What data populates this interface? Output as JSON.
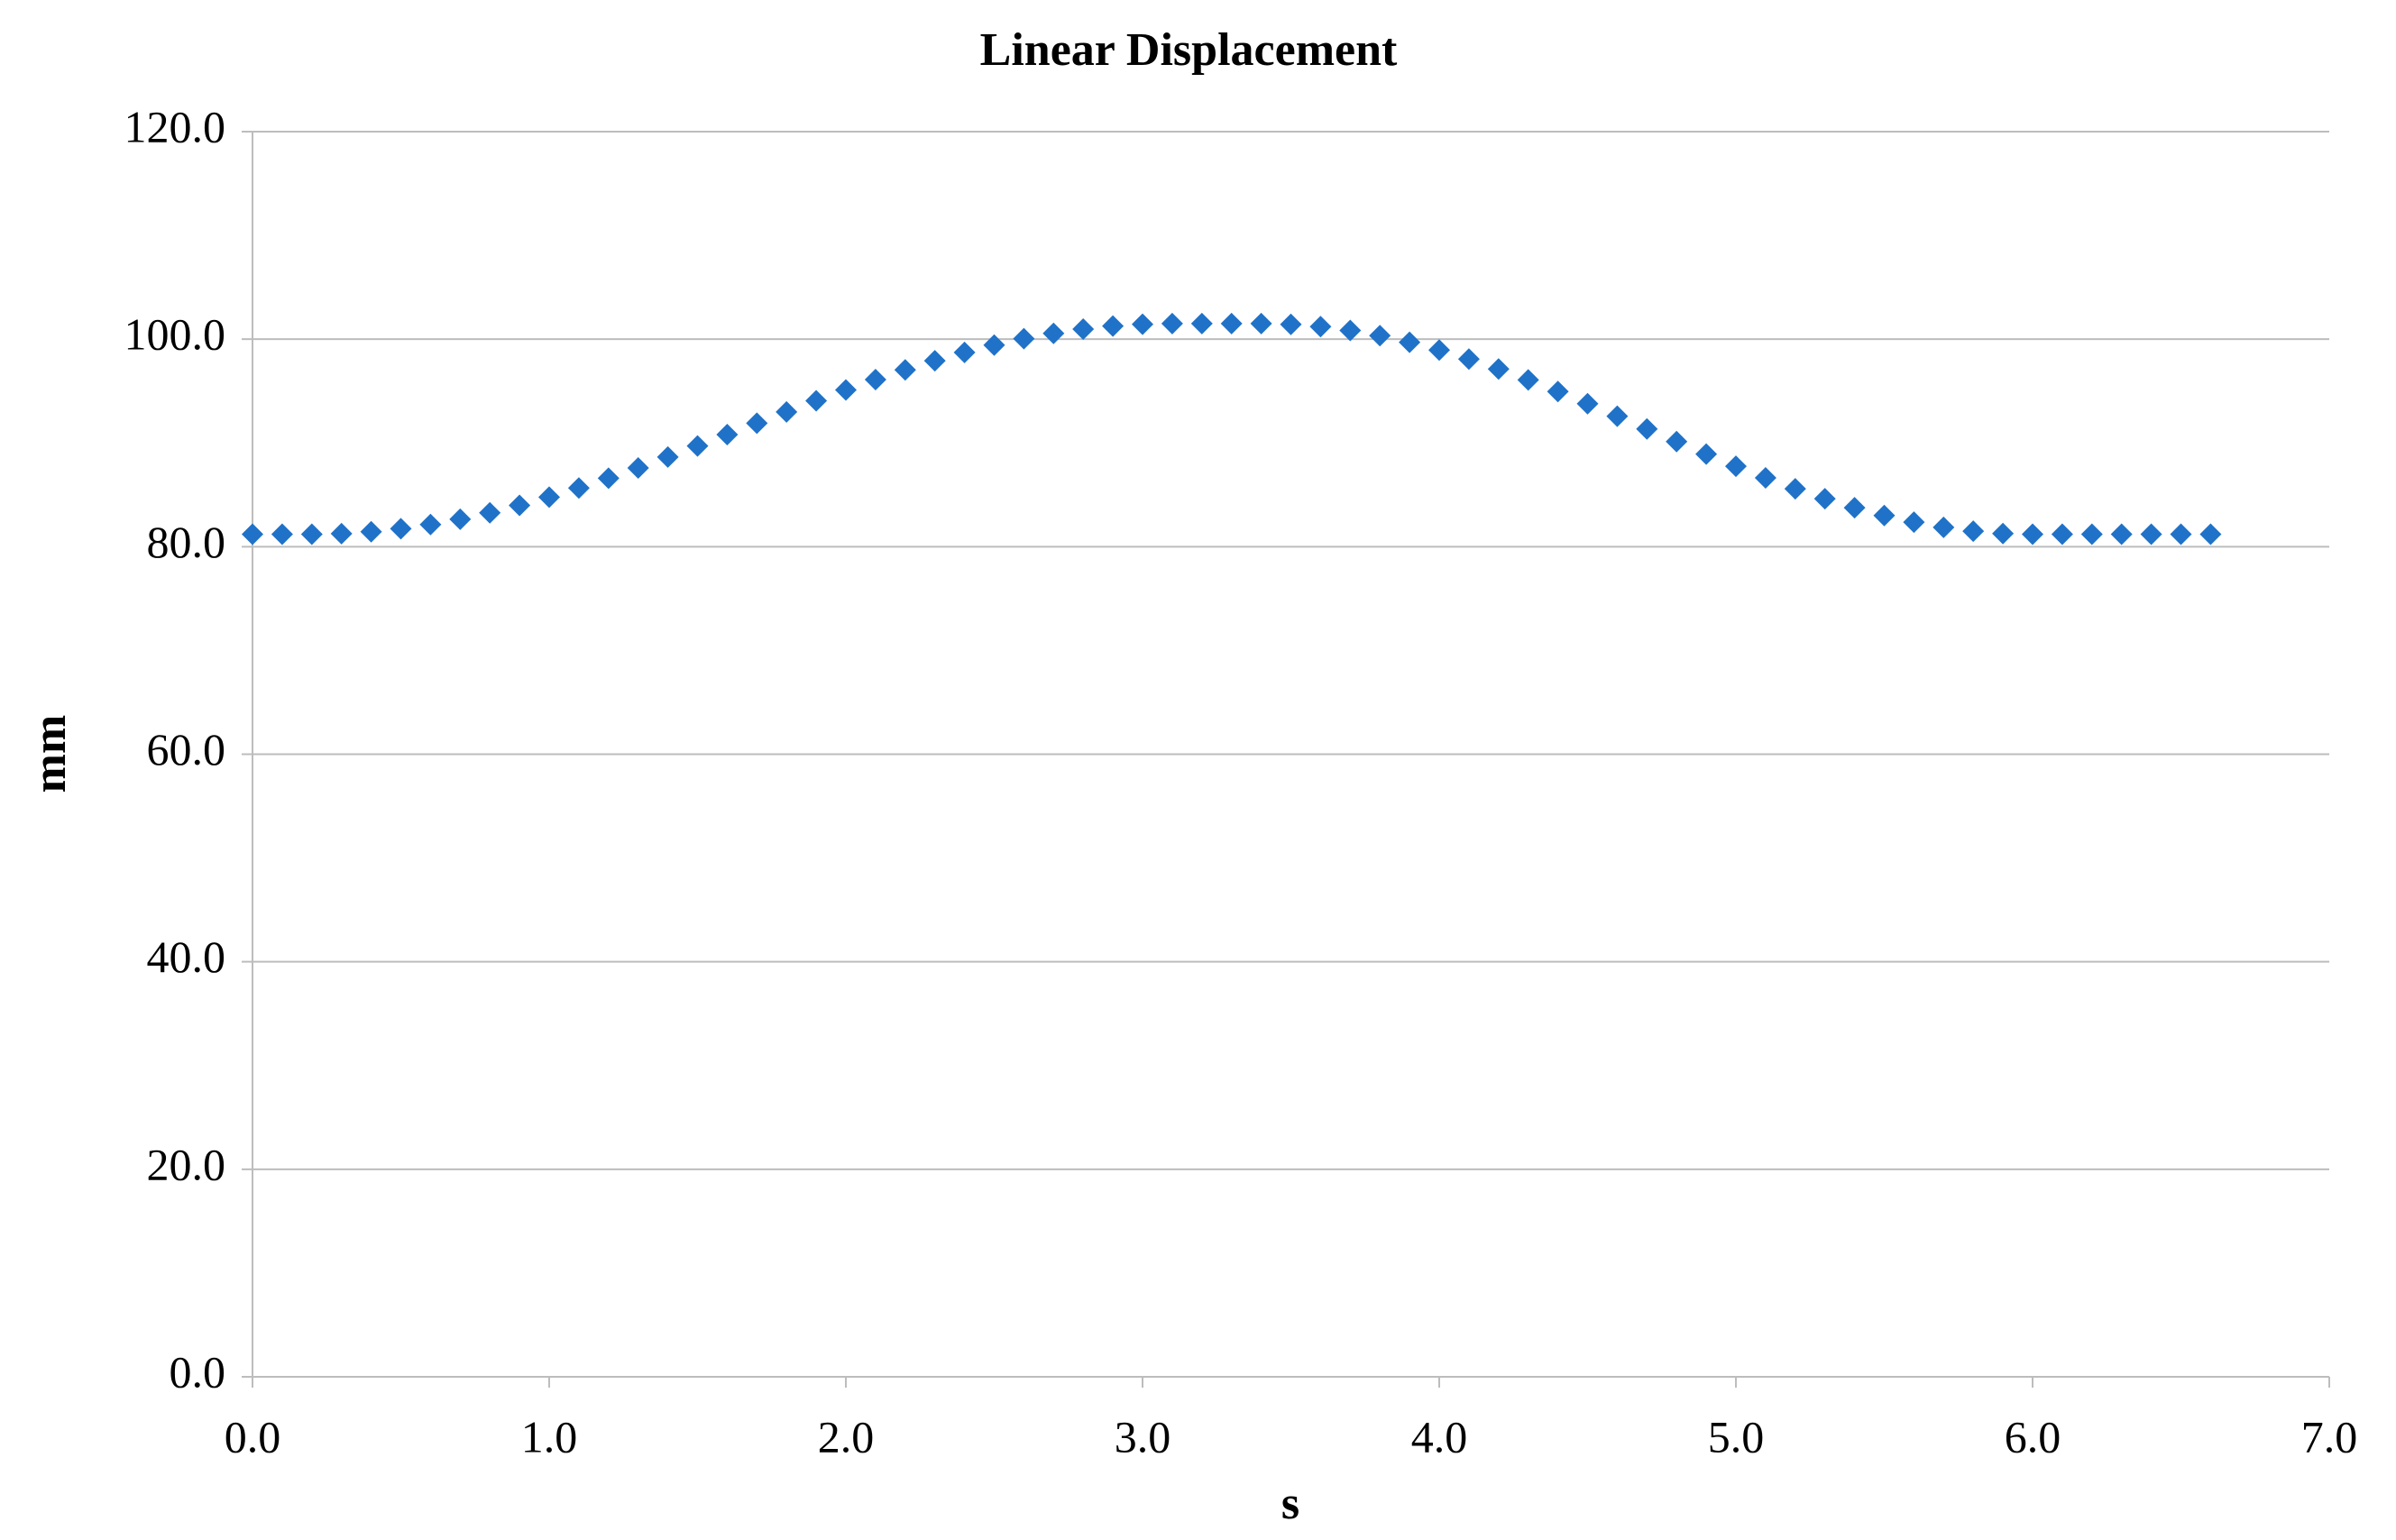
{
  "chart_data": {
    "type": "scatter",
    "title": "Linear Displacement",
    "x_label": "s",
    "y_label": "mm",
    "xlim": [
      0,
      7
    ],
    "ylim": [
      0,
      120
    ],
    "xticks": [
      {
        "value": 0,
        "label": "0.0"
      },
      {
        "value": 1,
        "label": "1.0"
      },
      {
        "value": 2,
        "label": "2.0"
      },
      {
        "value": 3,
        "label": "3.0"
      },
      {
        "value": 4,
        "label": "4.0"
      },
      {
        "value": 5,
        "label": "5.0"
      },
      {
        "value": 6,
        "label": "6.0"
      },
      {
        "value": 7,
        "label": "7.0"
      }
    ],
    "yticks": [
      {
        "value": 0,
        "label": "0.0"
      },
      {
        "value": 20,
        "label": "20.0"
      },
      {
        "value": 40,
        "label": "40.0"
      },
      {
        "value": 60,
        "label": "60.0"
      },
      {
        "value": 80,
        "label": "80.0"
      },
      {
        "value": 100,
        "label": "100.0"
      },
      {
        "value": 120,
        "label": "120.0"
      }
    ],
    "grid": true,
    "marker": "diamond",
    "series": [
      {
        "color": "#1f72c8",
        "x": [
          0.0,
          0.1,
          0.2,
          0.3,
          0.4,
          0.5,
          0.6,
          0.7,
          0.8,
          0.9,
          1.0,
          1.1,
          1.2,
          1.3,
          1.4,
          1.5,
          1.6,
          1.7,
          1.8,
          1.9,
          2.0,
          2.1,
          2.2,
          2.3,
          2.4,
          2.5,
          2.6,
          2.7,
          2.8,
          2.9,
          3.0,
          3.1,
          3.2,
          3.3,
          3.4,
          3.5,
          3.6,
          3.7,
          3.8,
          3.9,
          4.0,
          4.1,
          4.2,
          4.3,
          4.4,
          4.5,
          4.6,
          4.7,
          4.8,
          4.9,
          5.0,
          5.1,
          5.2,
          5.3,
          5.4,
          5.5,
          5.6,
          5.7,
          5.8,
          5.9,
          6.0,
          6.1,
          6.2,
          6.3,
          6.4,
          6.5,
          6.6
        ],
        "values": [
          81.2,
          81.2,
          81.2,
          81.26,
          81.44,
          81.73,
          82.14,
          82.65,
          83.27,
          83.98,
          84.78,
          85.66,
          86.6,
          87.59,
          88.64,
          89.71,
          90.8,
          91.9,
          92.99,
          94.06,
          95.11,
          96.1,
          97.04,
          97.92,
          98.72,
          99.43,
          100.05,
          100.56,
          100.97,
          101.26,
          101.44,
          101.5,
          101.5,
          101.5,
          101.5,
          101.43,
          101.21,
          100.84,
          100.34,
          99.7,
          98.95,
          98.08,
          97.12,
          96.07,
          94.95,
          93.78,
          92.57,
          91.35,
          90.13,
          88.92,
          87.75,
          86.63,
          85.58,
          84.62,
          83.75,
          83.0,
          82.36,
          81.86,
          81.49,
          81.27,
          81.2,
          81.2,
          81.2,
          81.2,
          81.2,
          81.2,
          81.2
        ]
      }
    ]
  }
}
